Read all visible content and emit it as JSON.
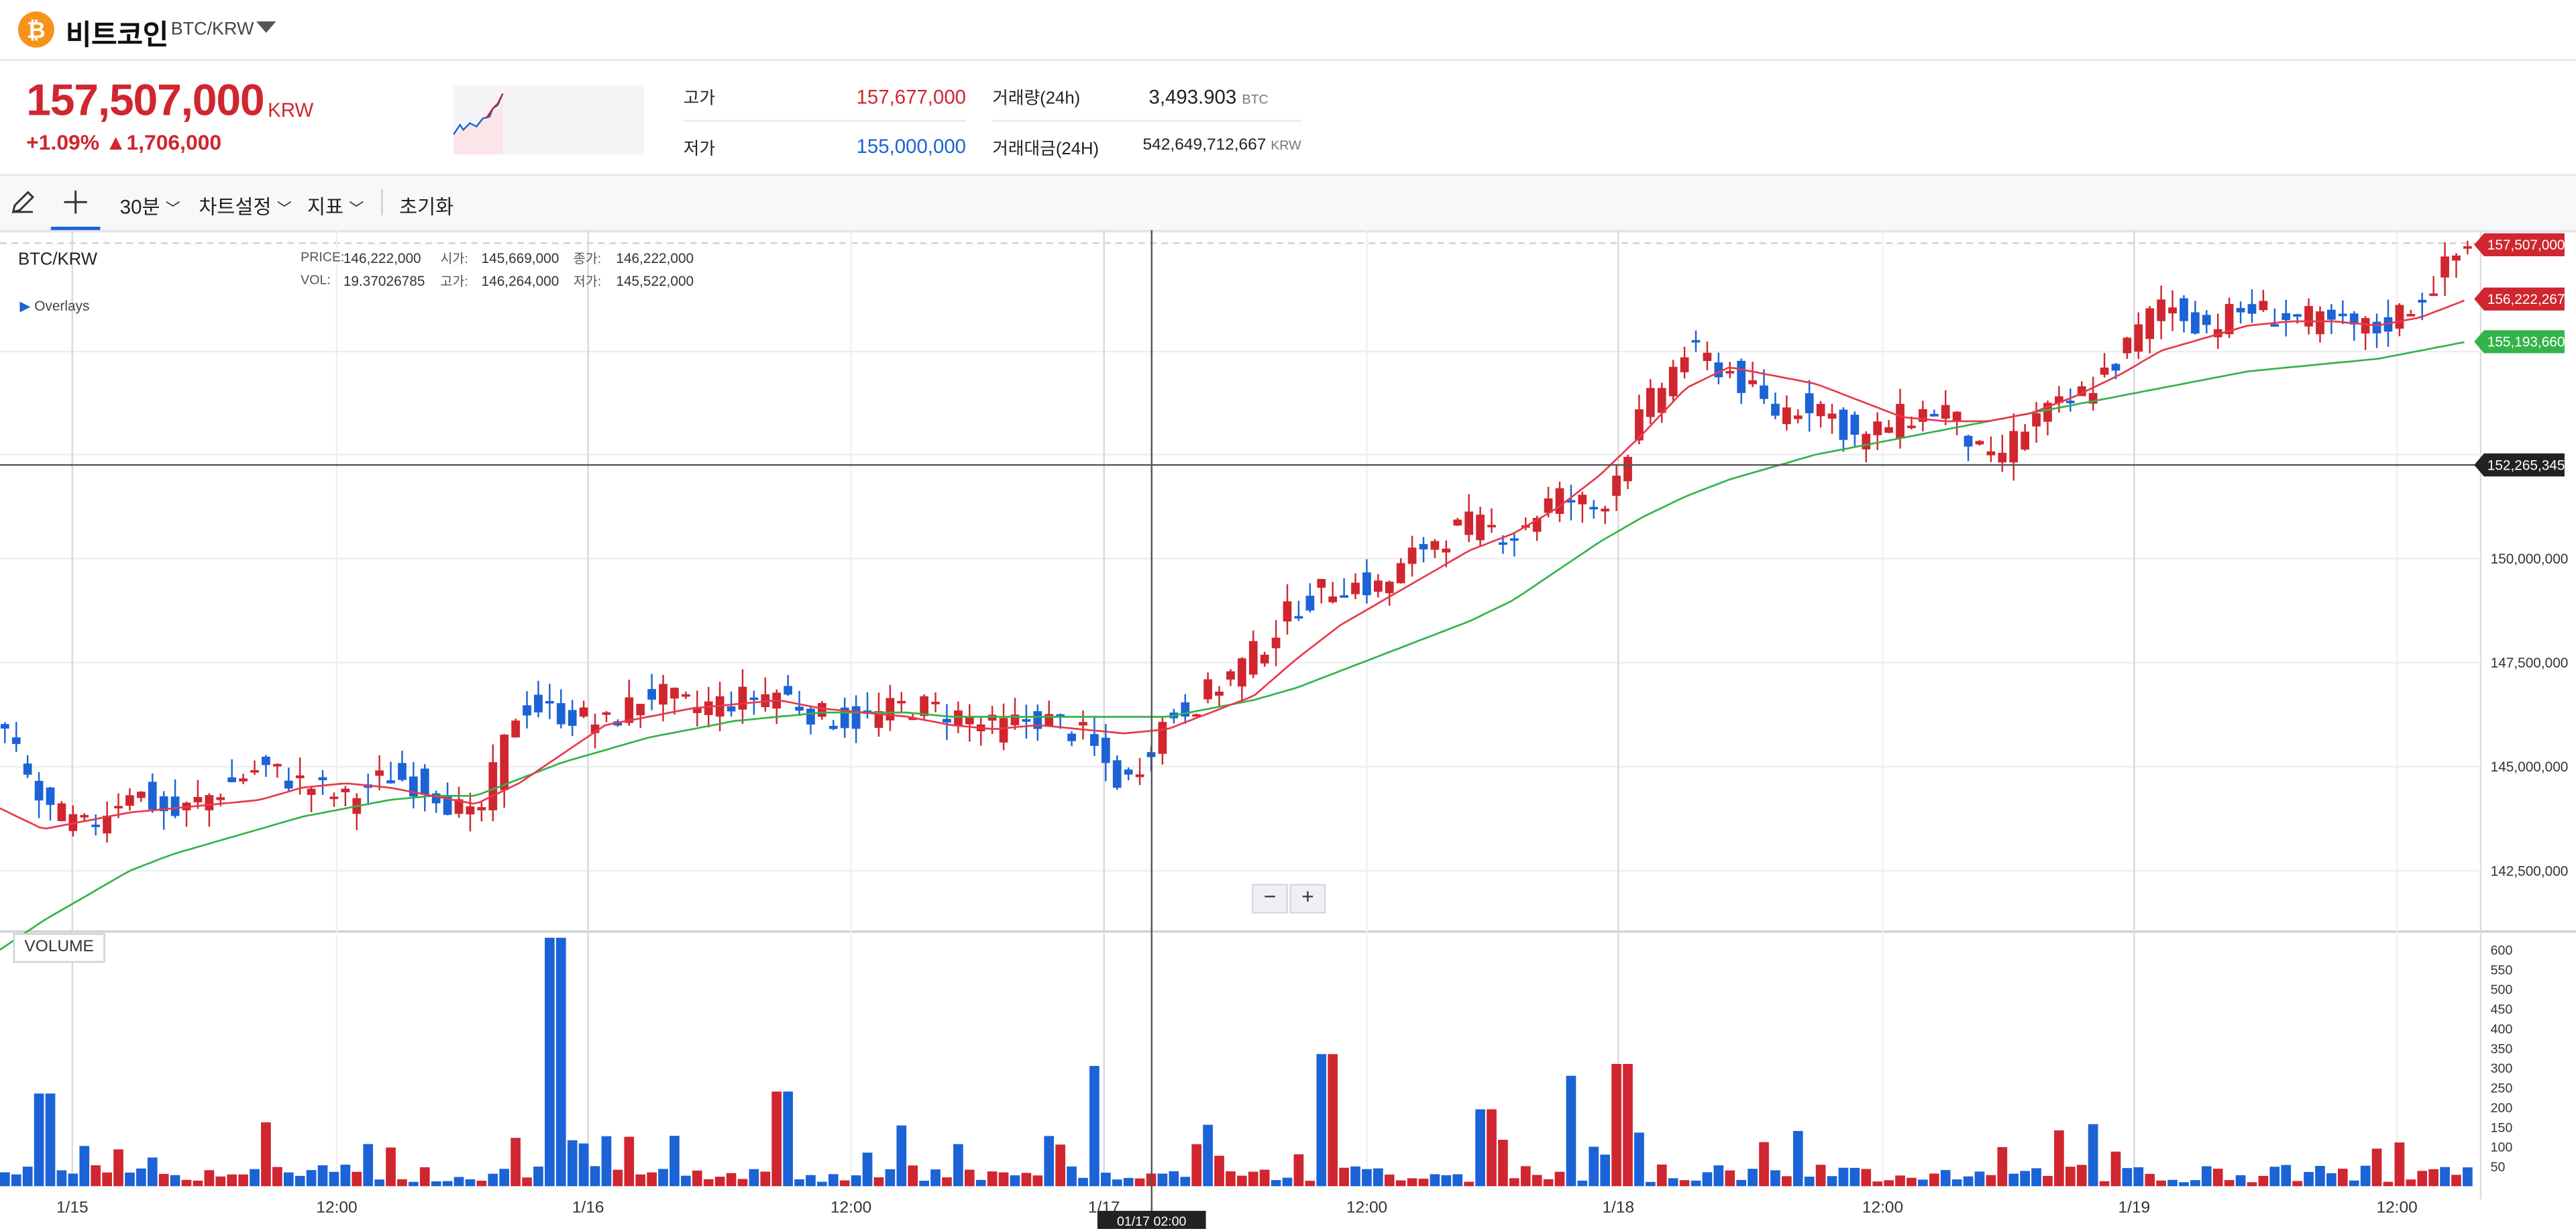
{
  "header": {
    "coin_name": "비트코인",
    "pair": "BTC/KRW",
    "price": "157,507,000",
    "price_unit": "KRW",
    "change_pct": "+1.09%",
    "change_abs": "▲1,706,000",
    "stats": {
      "high_label": "고가",
      "high_value": "157,677,000",
      "low_label": "저가",
      "low_value": "155,000,000",
      "vol_label": "거래량(24h)",
      "vol_value": "3,493.903",
      "vol_unit": "BTC",
      "amt_label": "거래대금(24H)",
      "amt_value": "542,649,712,667",
      "amt_unit": "KRW"
    }
  },
  "toolbar": {
    "interval": "30분",
    "chart_settings": "차트설정",
    "indicators": "지표",
    "reset": "초기화"
  },
  "chart": {
    "symbol": "BTC/KRW",
    "overlays_label": "Overlays",
    "info": {
      "price_label": "PRICE:",
      "price": "146,222,000",
      "open_label": "시가:",
      "open": "145,669,000",
      "close_label": "종가:",
      "close": "146,222,000",
      "vol_label": "VOL:",
      "vol": "19.37026785",
      "high_label": "고가:",
      "high": "146,264,000",
      "low_label": "저가:",
      "low": "145,522,000"
    },
    "y_ticks": [
      "150,000,000",
      "147,500,000",
      "145,000,000",
      "142,500,000"
    ],
    "price_tags": {
      "last": "157,507,000",
      "ma_short": "156,222,267",
      "ma_long": "155,193,660",
      "crosshair": "152,265,345"
    },
    "x_ticks": [
      "1/15",
      "12:00",
      "1/16",
      "12:00",
      "1/17",
      "12:00",
      "1/18",
      "12:00",
      "1/19",
      "12:00"
    ],
    "crosshair_time": "01/17 02:00",
    "volume_label": "VOLUME",
    "vol_ticks": [
      "600",
      "550",
      "500",
      "450",
      "400",
      "350",
      "300",
      "250",
      "200",
      "150",
      "100",
      "50"
    ],
    "zoom_minus": "−",
    "zoom_plus": "+"
  },
  "colors": {
    "up": "#d0262f",
    "down": "#1b63d6",
    "ma_short": "#e8394a",
    "ma_long": "#34b34a"
  },
  "chart_data": {
    "type": "candlestick",
    "interval": "30분",
    "yrange": [
      140000000,
      158000000
    ],
    "vol_range": [
      0,
      650
    ],
    "anchors": [
      146000000,
      144000000,
      143500000,
      144500000,
      143800000,
      144400000,
      145000000,
      144600000,
      144200000,
      144800000,
      144500000,
      143600000,
      146500000,
      146300000,
      146000000,
      146800000,
      146400000,
      146600000,
      146800000,
      146200000,
      146100000,
      146500000,
      146300000,
      145900000,
      146200000,
      145800000,
      144500000,
      146200000,
      146800000,
      147700000,
      148900000,
      149400000,
      149300000,
      150400000,
      150800000,
      150600000,
      151500000,
      151200000,
      153500000,
      155000000,
      154500000,
      153500000,
      153800000,
      152800000,
      153400000,
      153600000,
      152200000,
      153300000,
      153800000,
      154800000,
      156200000,
      155600000,
      156000000,
      155800000,
      155600000,
      155500000,
      156300000,
      157500000
    ],
    "ma_short": [
      144000000,
      143500000,
      143700000,
      143900000,
      144000000,
      144100000,
      144200000,
      144500000,
      144600000,
      144500000,
      144300000,
      144100000,
      144600000,
      145300000,
      146000000,
      146200000,
      146400000,
      146500000,
      146600000,
      146400000,
      146300000,
      146200000,
      146000000,
      145900000,
      146000000,
      145900000,
      145800000,
      145900000,
      146300000,
      146700000,
      147600000,
      148400000,
      149000000,
      149600000,
      150200000,
      150600000,
      151200000,
      152000000,
      153000000,
      154100000,
      154600000,
      154400000,
      154200000,
      153800000,
      153400000,
      153300000,
      153300000,
      153500000,
      153900000,
      154400000,
      155000000,
      155300000,
      155600000,
      155700000,
      155700000,
      155600000,
      155800000,
      156200000
    ],
    "ma_long": [
      140600000,
      141300000,
      141900000,
      142500000,
      142900000,
      143200000,
      143500000,
      143800000,
      144000000,
      144200000,
      144300000,
      144300000,
      144700000,
      145100000,
      145400000,
      145700000,
      145900000,
      146100000,
      146200000,
      146300000,
      146300000,
      146300000,
      146200000,
      146200000,
      146200000,
      146200000,
      146200000,
      146200000,
      146400000,
      146600000,
      146900000,
      147300000,
      147700000,
      148100000,
      148500000,
      149000000,
      149700000,
      150400000,
      151000000,
      151500000,
      151900000,
      152200000,
      152500000,
      152700000,
      152900000,
      153100000,
      153300000,
      153500000,
      153700000,
      153900000,
      154100000,
      154300000,
      154500000,
      154600000,
      154700000,
      154800000,
      155000000,
      155200000
    ],
    "volume_spikes": [
      {
        "pos": 0.226,
        "value": 630
      },
      {
        "pos": 0.537,
        "value": 335
      },
      {
        "pos": 0.657,
        "value": 310
      },
      {
        "pos": 0.443,
        "value": 305
      },
      {
        "pos": 0.636,
        "value": 280
      },
      {
        "pos": 0.318,
        "value": 240
      },
      {
        "pos": 0.018,
        "value": 235
      },
      {
        "pos": 0.601,
        "value": 195
      }
    ]
  }
}
